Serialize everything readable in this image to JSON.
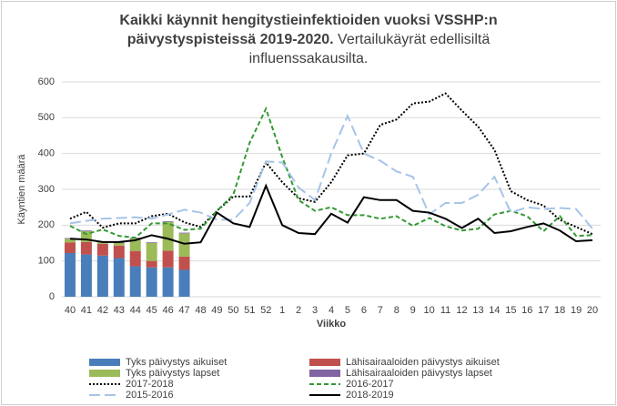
{
  "chart_data": {
    "type": "combo",
    "title": "Kaikki käynnit hengitystieinfektioiden vuoksi VSSHP:n päivystyspisteissä 2019-2020.",
    "subtitle": "Vertailukäyrät edellisiltä influenssakausilta.",
    "x_label": "Viikko",
    "y_label": "Käyntien määrä",
    "categories": [
      "40",
      "41",
      "42",
      "43",
      "44",
      "45",
      "46",
      "47",
      "48",
      "49",
      "50",
      "51",
      "52",
      "1",
      "2",
      "3",
      "4",
      "5",
      "6",
      "7",
      "8",
      "9",
      "10",
      "11",
      "12",
      "13",
      "14",
      "15",
      "16",
      "17",
      "18",
      "19",
      "20"
    ],
    "ylim": [
      0,
      600
    ],
    "yticks": [
      0,
      100,
      200,
      300,
      400,
      500,
      600
    ],
    "grid": true,
    "series": [
      {
        "name": "Tyks päivystys aikuiset",
        "kind": "bar",
        "color": "#4a7ebb",
        "values": [
          122,
          118,
          115,
          108,
          85,
          82,
          82,
          75,
          null,
          null,
          null,
          null,
          null,
          null,
          null,
          null,
          null,
          null,
          null,
          null,
          null,
          null,
          null,
          null,
          null,
          null,
          null,
          null,
          null,
          null,
          null,
          null,
          null
        ]
      },
      {
        "name": "Lähisairaaloiden päivystys aikuiset",
        "kind": "bar",
        "color": "#c0504d",
        "values": [
          30,
          35,
          33,
          35,
          43,
          18,
          47,
          37,
          null,
          null,
          null,
          null,
          null,
          null,
          null,
          null,
          null,
          null,
          null,
          null,
          null,
          null,
          null,
          null,
          null,
          null,
          null,
          null,
          null,
          null,
          null,
          null,
          null
        ]
      },
      {
        "name": "Tyks päivystys lapset",
        "kind": "bar",
        "color": "#9bbb59",
        "values": [
          10,
          30,
          5,
          7,
          35,
          50,
          80,
          65,
          null,
          null,
          null,
          null,
          null,
          null,
          null,
          null,
          null,
          null,
          null,
          null,
          null,
          null,
          null,
          null,
          null,
          null,
          null,
          null,
          null,
          null,
          null,
          null,
          null
        ]
      },
      {
        "name": "Lähisairaaloiden päivystys lapset",
        "kind": "bar",
        "color": "#8064a2",
        "values": [
          2,
          2,
          2,
          2,
          2,
          2,
          2,
          2,
          null,
          null,
          null,
          null,
          null,
          null,
          null,
          null,
          null,
          null,
          null,
          null,
          null,
          null,
          null,
          null,
          null,
          null,
          null,
          null,
          null,
          null,
          null,
          null,
          null
        ]
      },
      {
        "name": "2017-2018",
        "kind": "line",
        "style": "dotted",
        "color": "#000000",
        "values": [
          218,
          237,
          193,
          205,
          205,
          225,
          232,
          208,
          195,
          240,
          280,
          280,
          375,
          320,
          275,
          265,
          320,
          395,
          400,
          480,
          495,
          540,
          545,
          568,
          520,
          475,
          410,
          295,
          270,
          255,
          215,
          195,
          175
        ]
      },
      {
        "name": "2016-2017",
        "kind": "line",
        "style": "dashed",
        "color": "#339933",
        "values": [
          198,
          175,
          188,
          170,
          165,
          205,
          205,
          187,
          190,
          240,
          285,
          430,
          525,
          390,
          270,
          240,
          250,
          228,
          228,
          218,
          225,
          198,
          220,
          197,
          185,
          190,
          230,
          240,
          225,
          183,
          225,
          170,
          172
        ]
      },
      {
        "name": "2015-2016",
        "kind": "line",
        "style": "longdash",
        "color": "#a6c4e8",
        "values": [
          205,
          212,
          218,
          220,
          222,
          218,
          230,
          243,
          235,
          215,
          215,
          262,
          378,
          375,
          305,
          270,
          400,
          505,
          400,
          380,
          350,
          335,
          230,
          262,
          262,
          285,
          335,
          235,
          250,
          245,
          248,
          245,
          190
        ]
      },
      {
        "name": "2018-2019",
        "kind": "line",
        "style": "solid",
        "color": "#000000",
        "values": [
          162,
          160,
          153,
          153,
          158,
          172,
          162,
          148,
          152,
          235,
          205,
          195,
          310,
          200,
          178,
          175,
          232,
          207,
          278,
          270,
          270,
          240,
          235,
          218,
          192,
          218,
          178,
          183,
          195,
          205,
          185,
          155,
          158
        ]
      }
    ]
  }
}
